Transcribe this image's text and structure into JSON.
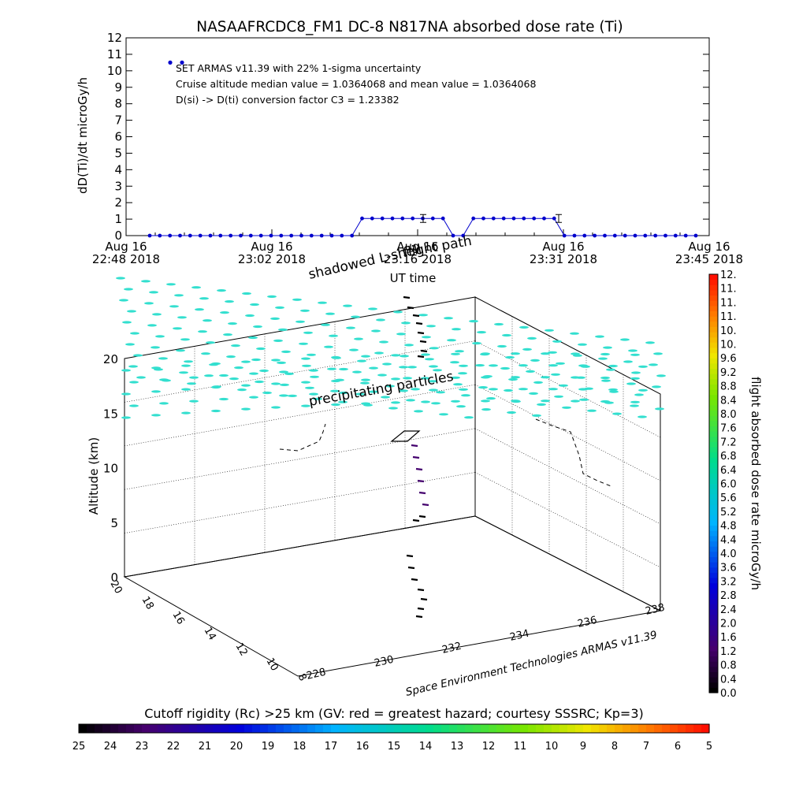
{
  "title": "NASAAFRCDC8_FM1 DC-8   N817NA absorbed dose rate (Ti)",
  "top_plot": {
    "ylabel": "dD(Ti)/dt microGy/h",
    "xlabel": "UT time",
    "annotations": [
      "SET ARMAS v11.39 with 22% 1-sigma uncertainty",
      "Cruise altitude median value = 1.0364068 and mean value = 1.0364068",
      "D(si) -> D(ti) conversion factor C3 = 1.23382"
    ],
    "x_ticks": [
      {
        "date": "Aug 16",
        "time": "22:48 2018"
      },
      {
        "date": "Aug 16",
        "time": "23:02 2018"
      },
      {
        "date": "Aug 16",
        "time": "23:16 2018"
      },
      {
        "date": "Aug 16",
        "time": "23:31 2018"
      },
      {
        "date": "Aug 16",
        "time": "23:45 2018"
      }
    ],
    "y_ticks": [
      "0",
      "1",
      "2",
      "3",
      "4",
      "5",
      "6",
      "7",
      "8",
      "9",
      "10",
      "11",
      "12"
    ]
  },
  "chart_data": {
    "type": "line",
    "title": "NASAAFRCDC8_FM1 DC-8   N817NA absorbed dose rate (Ti)",
    "xlabel": "UT time",
    "ylabel": "dD(Ti)/dt microGy/h",
    "ylim": [
      0,
      12
    ],
    "xlim": [
      "22:48",
      "23:45"
    ],
    "series": [
      {
        "color": "#0000cc",
        "x_minutes_after_2248": [
          4.1,
          5.7,
          7.3,
          8.9,
          10.5,
          12.1,
          13.7,
          15.3,
          16.9,
          18.5,
          20.1,
          21.7,
          23.3,
          24.9,
          26.5,
          28.1,
          29.7,
          31.3,
          32.9,
          34.5,
          36.1,
          37.7,
          39.3,
          40.9,
          42.5,
          44.1,
          45.7,
          47.3,
          48.9,
          50.5,
          52.1,
          53.7,
          55.3
        ],
        "values": [
          0,
          0,
          0,
          0,
          0,
          0,
          0,
          0,
          0,
          0,
          0,
          0,
          0,
          0,
          0,
          0,
          0,
          0,
          0,
          1.04,
          1.04,
          1.04,
          1.04,
          1.04,
          1.04,
          1.04,
          1.04,
          1.04,
          1.04,
          1.04,
          1.04,
          0,
          0
        ]
      }
    ],
    "outliers": [
      {
        "x_minutes_after_2248": 1.7,
        "value": 10.5
      },
      {
        "x_minutes_after_2248": 3.3,
        "value": 10.5
      }
    ]
  },
  "dose_series_top": [
    0,
    0,
    0,
    0,
    0,
    0,
    0,
    0,
    0,
    0,
    0,
    0,
    0,
    0,
    0,
    0,
    0,
    0,
    0,
    0,
    0,
    1.04,
    1.04,
    1.04,
    1.04,
    1.04,
    1.04,
    1.04,
    1.04,
    1.04,
    0,
    0,
    1.04,
    1.04,
    1.04,
    1.04,
    1.04,
    1.04,
    1.04,
    1.04,
    1.04,
    0,
    0,
    0,
    0,
    0,
    0,
    0,
    0,
    0,
    0,
    0,
    0,
    0,
    0
  ],
  "view3d": {
    "label_shadowed": "shadowed L-shell",
    "label_flight_path": "flight path",
    "label_precipitating": "precipitating particles",
    "zlabel": "Altitude (km)",
    "z_ticks": [
      "0",
      "5",
      "10",
      "15",
      "20"
    ],
    "lat_ticks": [
      "8",
      "10",
      "12",
      "14",
      "16",
      "18",
      "20"
    ],
    "time_ticks": [
      "228",
      "230",
      "232",
      "234",
      "236",
      "238"
    ],
    "credit": "Space Environment Technologies ARMAS v11.39"
  },
  "dose_colorbar": {
    "label": "flight absorbed dose rate microGy/h",
    "ticks": [
      "0.0",
      "0.4",
      "0.8",
      "1.2",
      "1.6",
      "2.0",
      "2.4",
      "2.8",
      "3.2",
      "3.6",
      "4.0",
      "4.4",
      "4.8",
      "5.2",
      "5.6",
      "6.0",
      "6.4",
      "6.8",
      "7.2",
      "7.6",
      "8.0",
      "8.4",
      "8.8",
      "9.2",
      "9.6",
      "10.",
      "10.",
      "11.",
      "11.",
      "11.",
      "12."
    ]
  },
  "rigidity_colorbar": {
    "label": "Cutoff rigidity (Rc) >25 km (GV: red = greatest hazard; courtesy SSSRC; Kp=3)",
    "ticks": [
      "25",
      "24",
      "23",
      "22",
      "21",
      "20",
      "19",
      "18",
      "17",
      "16",
      "15",
      "14",
      "13",
      "12",
      "11",
      "10",
      "9",
      "8",
      "7",
      "6",
      "5"
    ]
  },
  "colors": {
    "series": "#0000cc",
    "precipitation": "#33dfcf",
    "flight_path": "#000000"
  }
}
